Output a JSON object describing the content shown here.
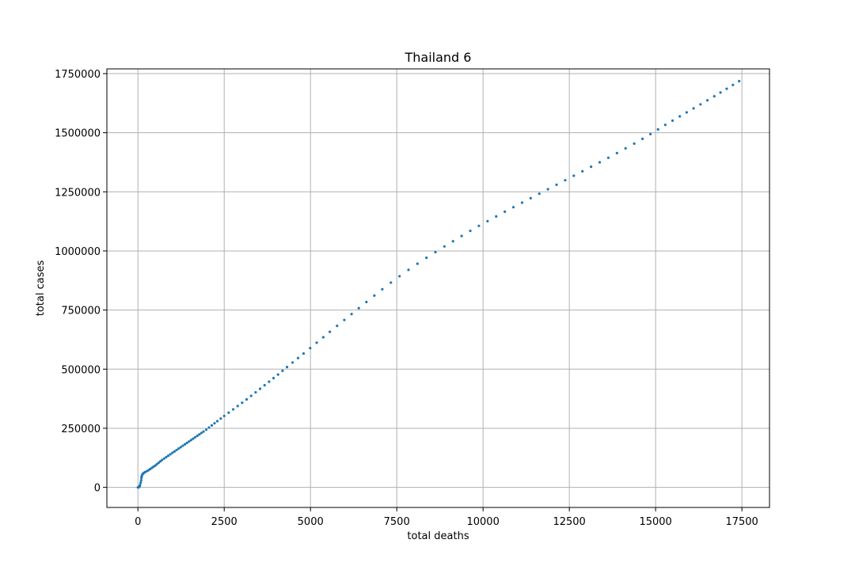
{
  "chart_data": {
    "type": "scatter",
    "title": "Thailand 6",
    "xlabel": "total deaths",
    "ylabel": "total cases",
    "xlim": [
      -900,
      18300
    ],
    "ylim": [
      -85000,
      1770000
    ],
    "xticks": [
      0,
      2500,
      5000,
      7500,
      10000,
      12500,
      15000,
      17500
    ],
    "xtick_labels": [
      "0",
      "2500",
      "5000",
      "7500",
      "10000",
      "12500",
      "15000",
      "17500"
    ],
    "yticks": [
      0,
      250000,
      500000,
      750000,
      1000000,
      1250000,
      1500000,
      1750000
    ],
    "ytick_labels": [
      "0",
      "250000",
      "500000",
      "750000",
      "1000000",
      "1250000",
      "1500000",
      "1750000"
    ],
    "grid": true,
    "marker_color": "#1f77b4",
    "series": [
      {
        "x": [
          0,
          10,
          30,
          50,
          60,
          80,
          94,
          100,
          110,
          120,
          140,
          160,
          200,
          250,
          300,
          350,
          400,
          450,
          500,
          550,
          600,
          650,
          700,
          760,
          820,
          880,
          940,
          1000,
          1060,
          1120,
          1180,
          1240,
          1300,
          1360,
          1420,
          1480,
          1540,
          1600,
          1660,
          1720,
          1780,
          1840,
          1900,
          1980,
          2060,
          2140,
          2220,
          2300,
          2400,
          2500,
          2630,
          2760,
          2890,
          3020,
          3150,
          3280,
          3410,
          3540,
          3670,
          3800,
          3930,
          4060,
          4190,
          4320,
          4480,
          4640,
          4800,
          4990,
          5180,
          5370,
          5560,
          5770,
          5980,
          6190,
          6400,
          6620,
          6850,
          7080,
          7330,
          7580,
          7840,
          8100,
          8360,
          8620,
          8880,
          9130,
          9380,
          9630,
          9880,
          10130,
          10380,
          10630,
          10880,
          11130,
          11380,
          11630,
          11880,
          12130,
          12380,
          12630,
          12880,
          13130,
          13380,
          13630,
          13880,
          14130,
          14380,
          14620,
          14850,
          15070,
          15280,
          15490,
          15700,
          15900,
          16100,
          16300,
          16500,
          16700,
          16880,
          17060,
          17240,
          17420
        ],
        "y": [
          0,
          500,
          1000,
          5000,
          10000,
          20000,
          30000,
          40000,
          47000,
          52000,
          57000,
          60000,
          64000,
          68000,
          72000,
          77000,
          82000,
          87000,
          92000,
          98000,
          104000,
          110000,
          116000,
          122000,
          128000,
          134000,
          140000,
          146000,
          152000,
          158000,
          164000,
          170000,
          176000,
          182000,
          188000,
          194000,
          200000,
          206000,
          212000,
          218000,
          224000,
          230000,
          236000,
          244000,
          253000,
          262000,
          271000,
          280000,
          291000,
          302000,
          316000,
          330000,
          344000,
          358000,
          372000,
          387000,
          402000,
          417000,
          432000,
          447000,
          462000,
          477000,
          493000,
          509000,
          528000,
          547000,
          566000,
          589000,
          612000,
          635000,
          658000,
          683000,
          708000,
          733000,
          758000,
          784000,
          811000,
          838000,
          866000,
          893000,
          920000,
          946000,
          971000,
          995000,
          1019000,
          1041000,
          1063000,
          1085000,
          1106000,
          1126000,
          1146000,
          1166000,
          1185000,
          1204000,
          1223000,
          1242000,
          1261000,
          1280000,
          1299000,
          1318000,
          1337000,
          1356000,
          1375000,
          1394000,
          1414000,
          1434000,
          1454000,
          1474000,
          1494000,
          1514000,
          1533000,
          1551000,
          1569000,
          1586000,
          1603000,
          1620000,
          1637000,
          1654000,
          1670000,
          1686000,
          1702000,
          1718000
        ]
      }
    ]
  }
}
